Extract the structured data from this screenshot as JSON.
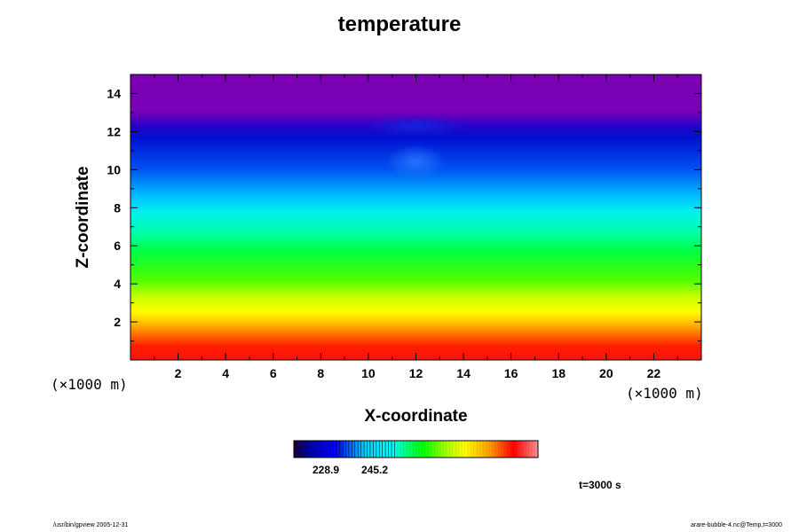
{
  "chart_data": {
    "type": "heatmap",
    "title": "temperature",
    "xlabel": "X-coordinate",
    "ylabel": "Z-coordinate",
    "x_unit": "(×1000 m)",
    "y_unit": "(×1000 m)",
    "xlim": [
      0,
      24
    ],
    "ylim": [
      0,
      15
    ],
    "x_ticks": [
      2,
      4,
      6,
      8,
      10,
      12,
      14,
      16,
      18,
      20,
      22
    ],
    "y_ticks": [
      2,
      4,
      6,
      8,
      10,
      12,
      14
    ],
    "grid": false,
    "colorbar": {
      "colormap": "rainbow (purple-blue-cyan-green-yellow-orange-red)",
      "tick_labels": [
        "228.9",
        "245.2"
      ]
    },
    "annotation": "t=3000 s"
  },
  "footer": {
    "left": "/usr/bin/gpview 2005-12-31",
    "right": "arare-bubble-4.nc@Temp,t=3000"
  }
}
